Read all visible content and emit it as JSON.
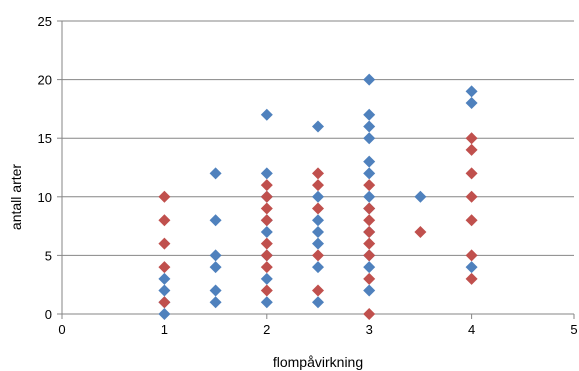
{
  "chart_data": {
    "type": "scatter",
    "title": "",
    "xlabel": "flompåvirkning",
    "ylabel": "antall arter",
    "xlim": [
      0,
      5
    ],
    "ylim": [
      0,
      25
    ],
    "xticks": [
      "0",
      "1",
      "2",
      "3",
      "4",
      "5"
    ],
    "yticks": [
      "0",
      "5",
      "10",
      "15",
      "20",
      "25"
    ],
    "grid": "horizontal",
    "legend": "none",
    "marker": "diamond",
    "series": [
      {
        "color": "#4F81BD",
        "points": [
          [
            1,
            0
          ],
          [
            1,
            1
          ],
          [
            1,
            2
          ],
          [
            1,
            3
          ],
          [
            1.5,
            1
          ],
          [
            1.5,
            2
          ],
          [
            1.5,
            4
          ],
          [
            1.5,
            5
          ],
          [
            1.5,
            8
          ],
          [
            1.5,
            12
          ],
          [
            2,
            1
          ],
          [
            2,
            3
          ],
          [
            2,
            5
          ],
          [
            2,
            7
          ],
          [
            2,
            8
          ],
          [
            2,
            10
          ],
          [
            2,
            12
          ],
          [
            2,
            17
          ],
          [
            2.5,
            1
          ],
          [
            2.5,
            4
          ],
          [
            2.5,
            6
          ],
          [
            2.5,
            7
          ],
          [
            2.5,
            8
          ],
          [
            2.5,
            10
          ],
          [
            2.5,
            16
          ],
          [
            3,
            2
          ],
          [
            3,
            4
          ],
          [
            3,
            5
          ],
          [
            3,
            7
          ],
          [
            3,
            9
          ],
          [
            3,
            10
          ],
          [
            3,
            12
          ],
          [
            3,
            13
          ],
          [
            3,
            15
          ],
          [
            3,
            16
          ],
          [
            3,
            17
          ],
          [
            3,
            20
          ],
          [
            3.5,
            10
          ],
          [
            4,
            4
          ],
          [
            4,
            18
          ],
          [
            4,
            19
          ]
        ]
      },
      {
        "color": "#C0504D",
        "points": [
          [
            1,
            1
          ],
          [
            1,
            4
          ],
          [
            1,
            6
          ],
          [
            1,
            8
          ],
          [
            1,
            10
          ],
          [
            2,
            2
          ],
          [
            2,
            4
          ],
          [
            2,
            5
          ],
          [
            2,
            6
          ],
          [
            2,
            8
          ],
          [
            2,
            9
          ],
          [
            2,
            10
          ],
          [
            2,
            11
          ],
          [
            2.5,
            2
          ],
          [
            2.5,
            5
          ],
          [
            2.5,
            9
          ],
          [
            2.5,
            11
          ],
          [
            2.5,
            12
          ],
          [
            3,
            0
          ],
          [
            3,
            3
          ],
          [
            3,
            5
          ],
          [
            3,
            6
          ],
          [
            3,
            7
          ],
          [
            3,
            8
          ],
          [
            3,
            9
          ],
          [
            3,
            11
          ],
          [
            3.5,
            7
          ],
          [
            4,
            3
          ],
          [
            4,
            5
          ],
          [
            4,
            8
          ],
          [
            4,
            10
          ],
          [
            4,
            12
          ],
          [
            4,
            14
          ],
          [
            4,
            15
          ]
        ]
      }
    ]
  }
}
